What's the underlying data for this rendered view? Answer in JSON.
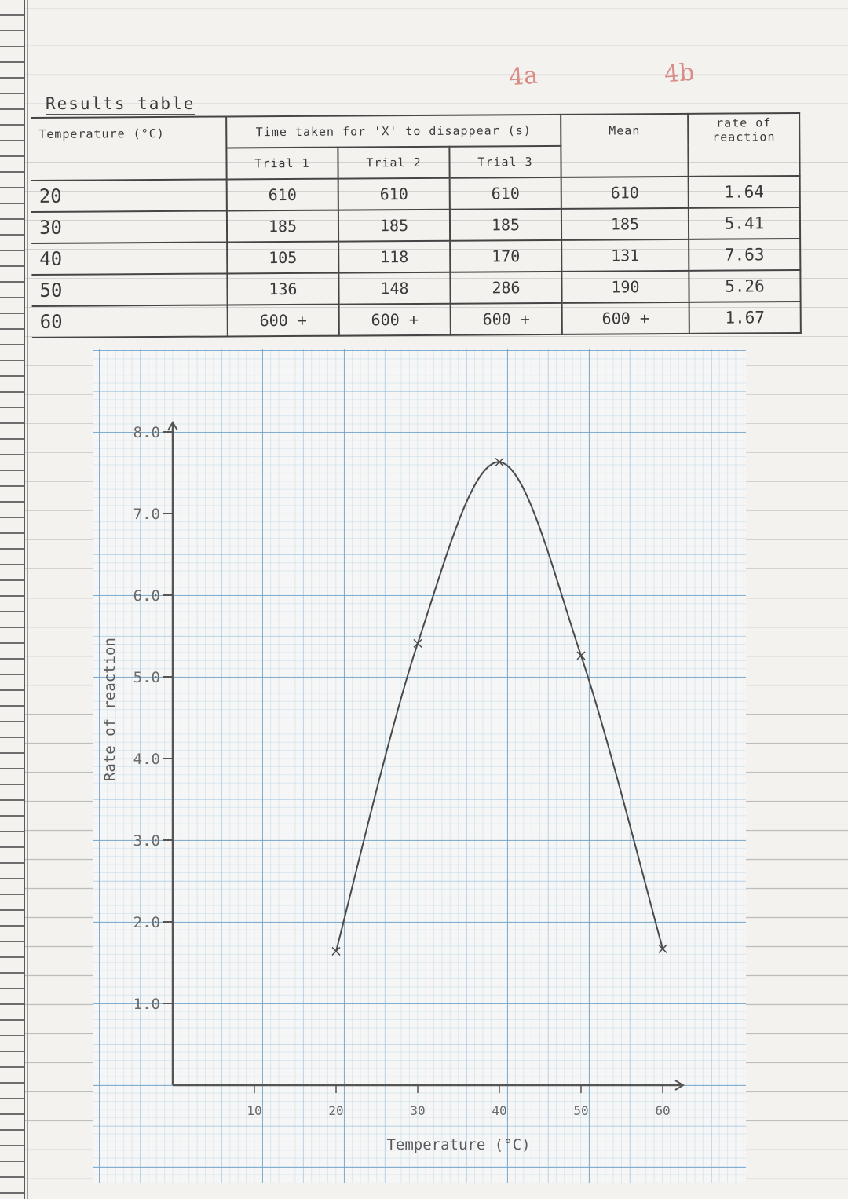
{
  "annotations": {
    "note_a": "4a",
    "note_b": "4b"
  },
  "table": {
    "title": "Results table",
    "headers": {
      "temperature": "Temperature (°C)",
      "time_taken": "Time taken for 'X' to disappear (s)",
      "mean": "Mean",
      "rate": "rate of reaction",
      "trials": [
        "Trial 1",
        "Trial 2",
        "Trial 3"
      ]
    },
    "rows": [
      {
        "temperature": "20",
        "trial1": "610",
        "trial2": "610",
        "trial3": "610",
        "mean": "610",
        "rate": "1.64"
      },
      {
        "temperature": "30",
        "trial1": "185",
        "trial2": "185",
        "trial3": "185",
        "mean": "185",
        "rate": "5.41"
      },
      {
        "temperature": "40",
        "trial1": "105",
        "trial2": "118",
        "trial3": "170",
        "mean": "131",
        "rate": "7.63"
      },
      {
        "temperature": "50",
        "trial1": "136",
        "trial2": "148",
        "trial3": "286",
        "mean": "190",
        "rate": "5.26"
      },
      {
        "temperature": "60",
        "trial1": "600 +",
        "trial2": "600 +",
        "trial3": "600 +",
        "mean": "600 +",
        "rate": "1.67"
      }
    ]
  },
  "chart_data": {
    "type": "line",
    "title": "",
    "xlabel": "Temperature (°C)",
    "ylabel": "Rate of reaction",
    "x": [
      20,
      30,
      40,
      50,
      60
    ],
    "series": [
      {
        "values": [
          1.64,
          5.41,
          7.63,
          5.26,
          1.67
        ]
      }
    ],
    "xticks": [
      "10",
      "20",
      "30",
      "40",
      "50",
      "60"
    ],
    "yticks": [
      "1.0",
      "2.0",
      "3.0",
      "4.0",
      "5.0",
      "6.0",
      "7.0",
      "8.0"
    ],
    "xlim": [
      0,
      60
    ],
    "ylim": [
      0,
      8
    ],
    "grid": true,
    "markers": "x",
    "colors": {
      "line": "#4a4a4a",
      "grid": "#6ea0c8",
      "ink": "#555555"
    }
  }
}
